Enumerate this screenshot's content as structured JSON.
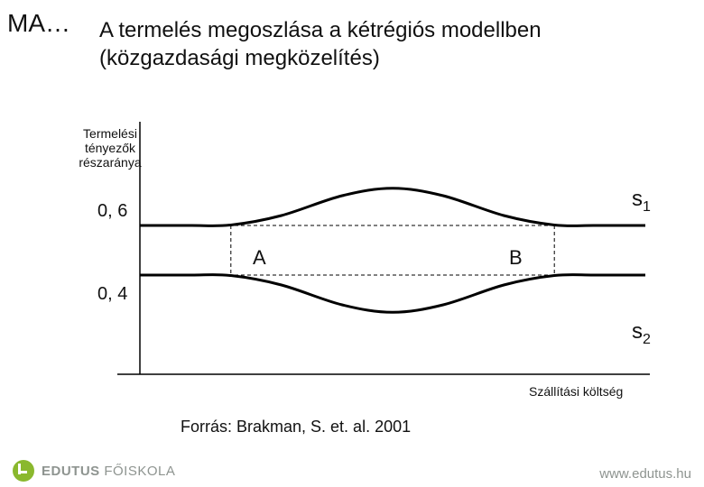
{
  "corner_tag": "MA…",
  "title": "A termelés megoszlása a kétrégiós modellben (közgazdasági megközelítés)",
  "y_axis_label": "Termelési tényezők részaránya",
  "x_axis_label": "Szállítási költség",
  "source": "Forrás: Brakman, S. et. al. 2001",
  "brand_bold": "EDUTUS",
  "brand_light": "FŐISKOLA",
  "footer_url": "www.edutus.hu",
  "chart": {
    "type": "line",
    "xlim": [
      0,
      1
    ],
    "ylim": [
      0,
      1
    ],
    "y_ticks": [
      {
        "value": 0.4,
        "label": "0, 4"
      },
      {
        "value": 0.6,
        "label": "0, 6"
      }
    ],
    "series": [
      {
        "name": "s",
        "sub": "1",
        "color": "#000000",
        "stroke": 3,
        "points": [
          [
            0.0,
            0.6
          ],
          [
            0.1,
            0.6
          ],
          [
            0.18,
            0.602
          ],
          [
            0.28,
            0.64
          ],
          [
            0.4,
            0.72
          ],
          [
            0.5,
            0.75
          ],
          [
            0.6,
            0.72
          ],
          [
            0.72,
            0.64
          ],
          [
            0.82,
            0.602
          ],
          [
            0.9,
            0.6
          ],
          [
            1.0,
            0.6
          ]
        ]
      },
      {
        "name": "s",
        "sub": "2",
        "color": "#000000",
        "stroke": 3,
        "points": [
          [
            0.0,
            0.4
          ],
          [
            0.1,
            0.4
          ],
          [
            0.18,
            0.398
          ],
          [
            0.28,
            0.36
          ],
          [
            0.4,
            0.28
          ],
          [
            0.5,
            0.25
          ],
          [
            0.6,
            0.28
          ],
          [
            0.72,
            0.36
          ],
          [
            0.82,
            0.398
          ],
          [
            0.9,
            0.4
          ],
          [
            1.0,
            0.4
          ]
        ]
      }
    ],
    "markers": [
      {
        "x": 0.18,
        "label": "A"
      },
      {
        "x": 0.82,
        "label": "B"
      }
    ],
    "guide_style": {
      "color": "#000000",
      "dash": "4 3",
      "stroke": 1
    },
    "axis_color": "#000000",
    "background": "#ffffff",
    "label_font_size": 14,
    "tick_font_size": 20,
    "series_label_font_size": 24
  }
}
